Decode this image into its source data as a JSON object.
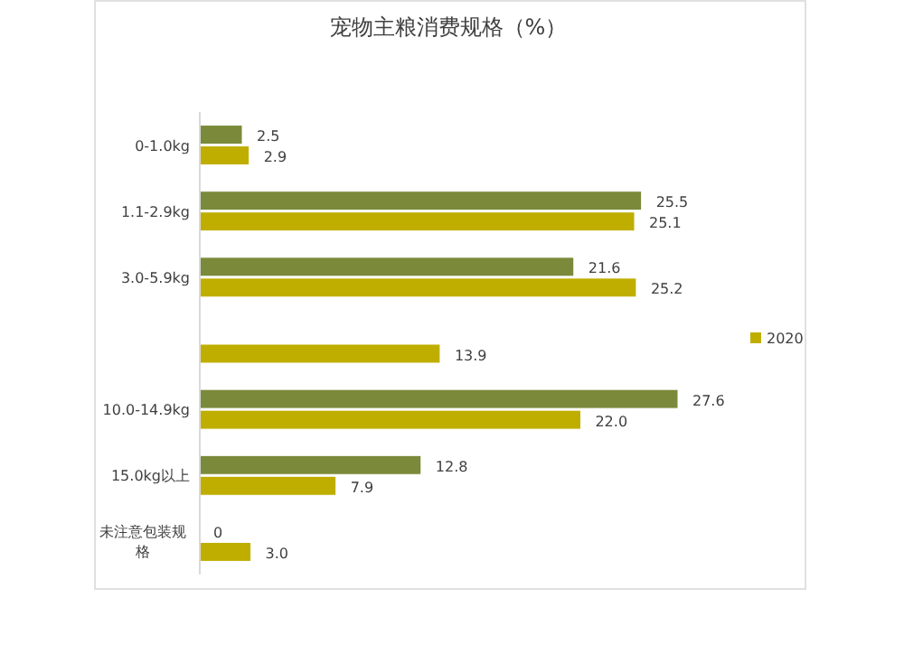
{
  "chart_data": {
    "type": "bar",
    "orientation": "horizontal",
    "title": "宠物主粮消费规格（%）",
    "categories": [
      "0-1.0kg",
      "1.1-2.9kg",
      "3.0-5.9kg",
      null,
      "10.0-14.9kg",
      "15.0kg以上",
      "未注意包装规格"
    ],
    "series": [
      {
        "color": "#7a8a3a",
        "values": [
          2.5,
          25.5,
          21.6,
          null,
          27.6,
          12.8,
          0
        ],
        "value_labels": [
          "2.5",
          "25.5",
          "21.6",
          null,
          "27.6",
          "12.8",
          "0"
        ]
      },
      {
        "name": "2020",
        "color": "#bfae00",
        "values": [
          2.9,
          25.1,
          25.2,
          13.9,
          22.0,
          7.9,
          3.0
        ],
        "value_labels": [
          "2.9",
          "25.1",
          "25.2",
          "13.9",
          "22.0",
          "7.9",
          "3.0"
        ]
      }
    ],
    "legend": "right"
  }
}
